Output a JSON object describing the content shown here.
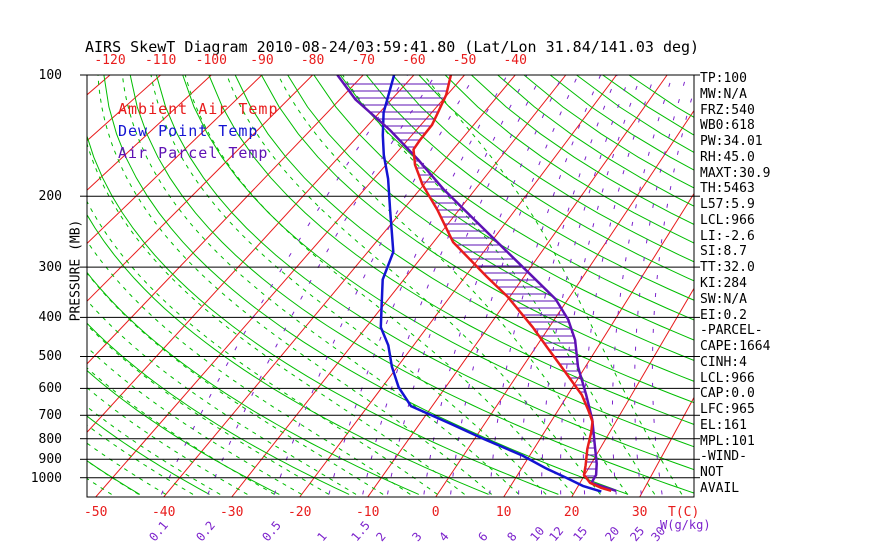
{
  "header": {
    "title": "AIRS SkewT Diagram 2010-08-24/03:59:41.80 (Lat/Lon 31.84/141.03 deg)"
  },
  "legend": {
    "items": [
      {
        "label": "Ambient Air Temp",
        "color": "#e81c1c"
      },
      {
        "label": "Dew Point Temp",
        "color": "#1414d2"
      },
      {
        "label": "Air Parcel Temp",
        "color": "#5e12b4"
      }
    ]
  },
  "axes": {
    "pressure_title": "PRESSURE (MB)",
    "pressure_labels": [
      "100",
      "200",
      "300",
      "400",
      "500",
      "600",
      "700",
      "800",
      "900",
      "1000"
    ],
    "top_temp_labels": [
      "-120",
      "-110",
      "-100",
      "-90",
      "-80",
      "-70",
      "-60",
      "-50",
      "-40"
    ],
    "bottom_temp_labels": [
      "-50",
      "-40",
      "-30",
      "-20",
      "-10",
      "0",
      "10",
      "20",
      "30"
    ],
    "temp_unit": "T(C)",
    "mixing_unit": "W(g/kg)",
    "mixing_labels": [
      "0.1",
      "0.2",
      "0.5",
      "1",
      "1.5",
      "2",
      "3",
      "4",
      "6",
      "8",
      "10",
      "12",
      "15",
      "20",
      "25",
      "30"
    ]
  },
  "panel": {
    "items": [
      "TP:100",
      "MW:N/A",
      "FRZ:540",
      "WB0:618",
      "PW:34.01",
      "RH:45.0",
      "MAXT:30.9",
      "TH:5463",
      "L57:5.9",
      "LCL:966",
      "LI:-2.6",
      "SI:8.7",
      "TT:32.0",
      "KI:284",
      "SW:N/A",
      "EI:0.2",
      "-PARCEL-",
      "CAPE:1664",
      "CINH:4",
      "LCL:966",
      "CAP:0.0",
      "LFC:965",
      "EL:161",
      "MPL:101",
      "-WIND-",
      "NOT",
      "AVAIL"
    ]
  },
  "chart_data": {
    "type": "line",
    "subtype": "skewt-log-p",
    "title": "AIRS SkewT Diagram 2010-08-24/03:59:41.80 (Lat/Lon 31.84/141.03 deg)",
    "xlabel": "T(C)",
    "ylabel": "PRESSURE (MB)",
    "pressure_range_mb": [
      100,
      1100
    ],
    "bottom_temp_range_c": [
      -50,
      35
    ],
    "top_temp_range_c": [
      -120,
      -40
    ],
    "isotherm_step_c": 10,
    "grid": "skewt (isobars, skewed isotherms, dry/moist adiabats, mixing-ratio lines)",
    "legend_position": "top-left inside plot",
    "colors": {
      "isotherm": "#e81c1c",
      "adiabat": "#00bd00",
      "mixing": "#7c22cc",
      "ambient": "#e81c1c",
      "dewpoint": "#1414d2",
      "parcel": "#5e12b4",
      "isobar": "#000000",
      "hatch": "#5e12b4"
    },
    "mixing_ratio_lines_g_kg": [
      0.1,
      0.2,
      0.5,
      1,
      1.5,
      2,
      3,
      4,
      6,
      8,
      10,
      12,
      15,
      20,
      25,
      30
    ],
    "series": [
      {
        "name": "Ambient Air Temp",
        "units": [
          "mb",
          "C"
        ],
        "points": [
          [
            100,
            -52.7
          ],
          [
            112,
            -50.2
          ],
          [
            124,
            -48.8
          ],
          [
            133,
            -47.9
          ],
          [
            145,
            -47.7
          ],
          [
            153,
            -47.4
          ],
          [
            167,
            -44.7
          ],
          [
            187,
            -40.3
          ],
          [
            216,
            -33.9
          ],
          [
            260,
            -26.6
          ],
          [
            317,
            -16.3
          ],
          [
            355,
            -10.4
          ],
          [
            423,
            -2.7
          ],
          [
            474,
            1.8
          ],
          [
            539,
            6.8
          ],
          [
            623,
            12.2
          ],
          [
            678,
            14.6
          ],
          [
            726,
            16.4
          ],
          [
            772,
            17.2
          ],
          [
            849,
            18.1
          ],
          [
            932,
            19.3
          ],
          [
            984,
            19.9
          ],
          [
            1030,
            21.5
          ],
          [
            1060,
            23.6
          ],
          [
            1078,
            25.3
          ]
        ]
      },
      {
        "name": "Dew Point Temp",
        "units": [
          "mb",
          "C"
        ],
        "points": [
          [
            100,
            -63.9
          ],
          [
            124,
            -59.2
          ],
          [
            141,
            -55.5
          ],
          [
            158,
            -52.0
          ],
          [
            181,
            -47.4
          ],
          [
            216,
            -42.3
          ],
          [
            249,
            -38.3
          ],
          [
            275,
            -35.6
          ],
          [
            295,
            -34.7
          ],
          [
            322,
            -33.6
          ],
          [
            370,
            -30.5
          ],
          [
            423,
            -27.6
          ],
          [
            469,
            -24.1
          ],
          [
            530,
            -20.9
          ],
          [
            596,
            -17.4
          ],
          [
            664,
            -13.3
          ],
          [
            735,
            -5.2
          ],
          [
            800,
            1.3
          ],
          [
            880,
            8.8
          ],
          [
            947,
            13.6
          ],
          [
            1000,
            17.5
          ],
          [
            1048,
            20.7
          ],
          [
            1083,
            23.9
          ]
        ]
      },
      {
        "name": "Air Parcel Temp",
        "units": [
          "mb",
          "C"
        ],
        "points": [
          [
            100,
            -75.1
          ],
          [
            115,
            -67.0
          ],
          [
            137,
            -55.0
          ],
          [
            162,
            -45.0
          ],
          [
            192,
            -35.8
          ],
          [
            228,
            -26.1
          ],
          [
            270,
            -16.9
          ],
          [
            317,
            -8.5
          ],
          [
            360,
            -2.1
          ],
          [
            405,
            2.3
          ],
          [
            455,
            5.6
          ],
          [
            530,
            8.8
          ],
          [
            623,
            12.9
          ],
          [
            718,
            16.2
          ],
          [
            826,
            18.8
          ],
          [
            922,
            20.8
          ],
          [
            984,
            21.7
          ],
          [
            1030,
            21.7
          ],
          [
            1078,
            26.0
          ]
        ]
      }
    ],
    "hatched_region": "between Ambient Air Temp and Air Parcel Temp curves (CAPE/CIN area), horizontal purple hatching",
    "indices": {
      "TP": 100,
      "MW": "N/A",
      "FRZ": 540,
      "WB0": 618,
      "PW": 34.01,
      "RH": 45.0,
      "MAXT": 30.9,
      "TH": 5463,
      "L57": 5.9,
      "LCL": 966,
      "LI": -2.6,
      "SI": 8.7,
      "TT": 32.0,
      "KI": 284,
      "SW": "N/A",
      "EI": 0.2,
      "CAPE": 1664,
      "CINH": 4,
      "LCL2": 966,
      "CAP": 0.0,
      "LFC": 965,
      "EL": 161,
      "MPL": 101,
      "WIND": "NOT AVAIL"
    }
  }
}
